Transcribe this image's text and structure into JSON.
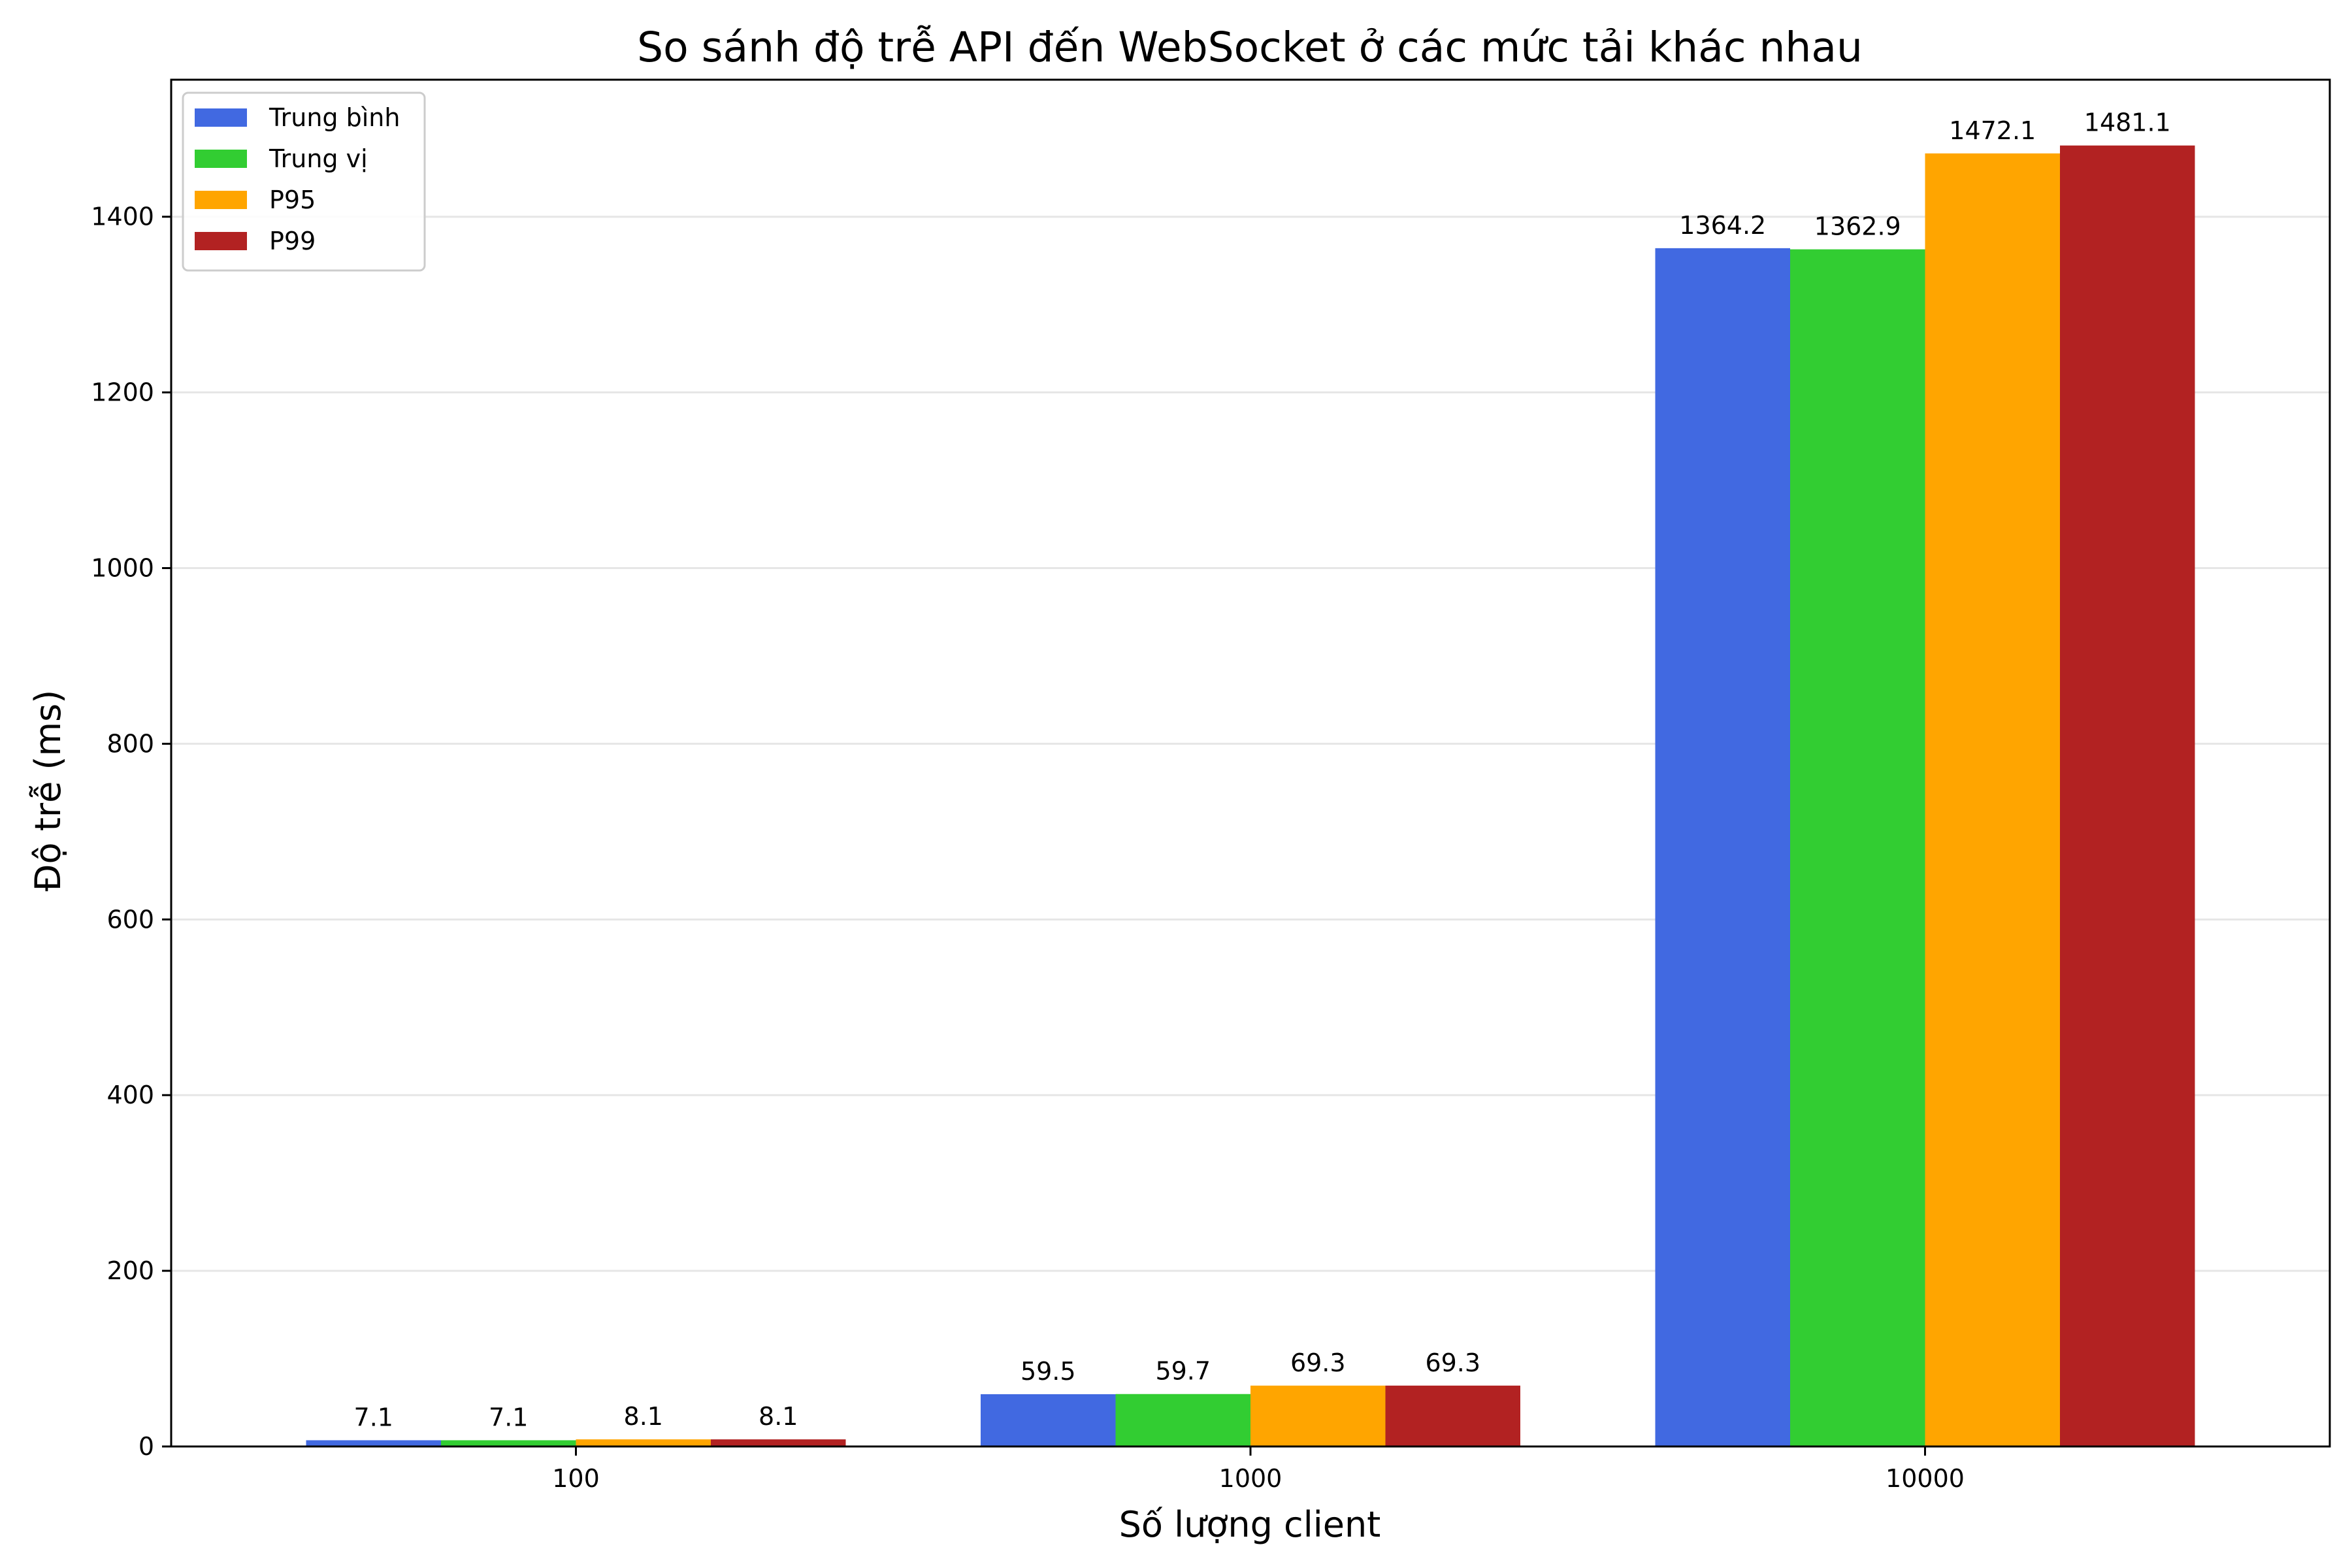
{
  "chart_data": {
    "type": "bar",
    "title": "So sánh độ trễ API đến WebSocket ở các mức tải khác nhau",
    "xlabel": "Số lượng client",
    "ylabel": "Độ trễ (ms)",
    "categories": [
      "100",
      "1000",
      "10000"
    ],
    "series": [
      {
        "name": "Trung bình",
        "color": "#4169e1",
        "values": [
          7.1,
          59.5,
          1364.2
        ],
        "labels": [
          "7.1",
          "59.5",
          "1364.2"
        ]
      },
      {
        "name": "Trung vị",
        "color": "#32cd32",
        "values": [
          7.1,
          59.7,
          1362.9
        ],
        "labels": [
          "7.1",
          "59.7",
          "1362.9"
        ]
      },
      {
        "name": "P95",
        "color": "#ffa500",
        "values": [
          8.1,
          69.3,
          1472.1
        ],
        "labels": [
          "8.1",
          "69.3",
          "1472.1"
        ]
      },
      {
        "name": "P99",
        "color": "#b22222",
        "values": [
          8.1,
          69.3,
          1481.1
        ],
        "labels": [
          "8.1",
          "69.3",
          "1481.1"
        ]
      }
    ],
    "ylim": [
      0,
      1556
    ],
    "yticks": [
      0,
      200,
      400,
      600,
      800,
      1000,
      1200,
      1400
    ],
    "grid": "y",
    "legend": "top-left"
  }
}
